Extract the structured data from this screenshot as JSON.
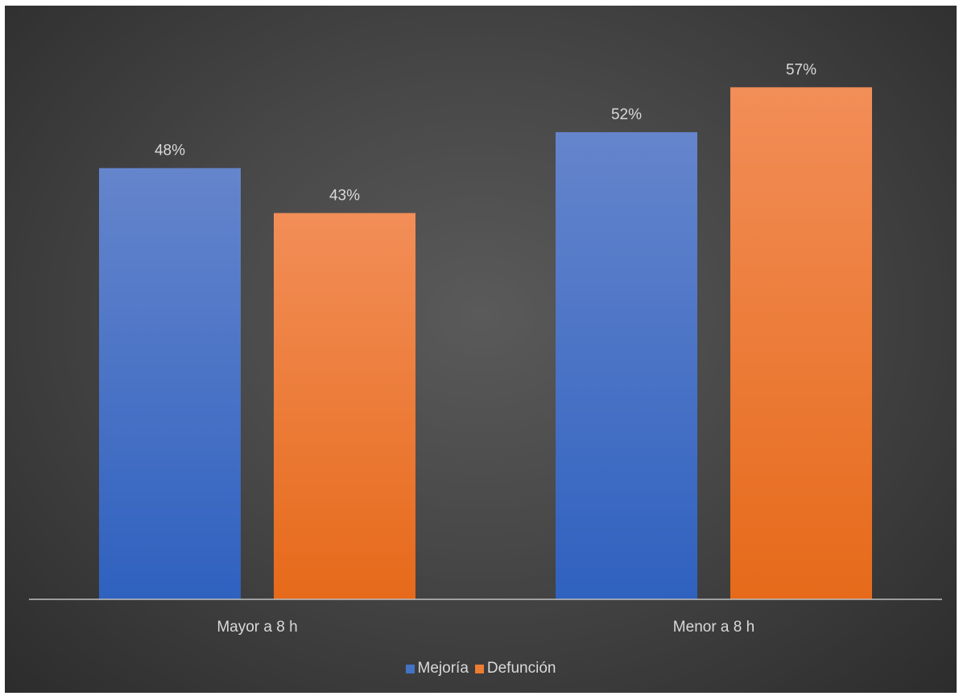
{
  "chart_data": {
    "type": "bar",
    "categories": [
      "Mayor a 8 h",
      "Menor a 8 h"
    ],
    "series": [
      {
        "name": "Mejoría",
        "values": [
          48,
          52
        ],
        "labels": [
          "48%",
          "52%"
        ],
        "color": "#4472c4"
      },
      {
        "name": "Defunción",
        "values": [
          43,
          57
        ],
        "labels": [
          "43%",
          "57%"
        ],
        "color": "#ed7d31"
      }
    ],
    "ylim": [
      0,
      62.5
    ],
    "grid": false,
    "legend_position": "bottom"
  }
}
